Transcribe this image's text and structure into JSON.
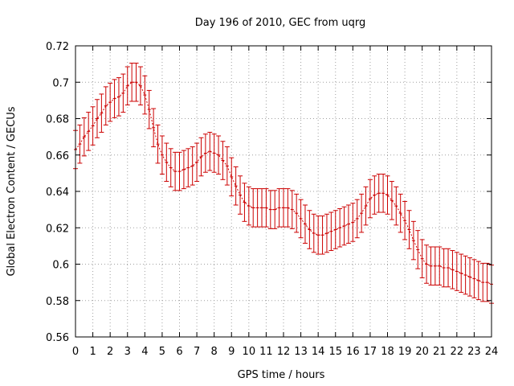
{
  "chart_data": {
    "type": "line",
    "title": "Day 196 of 2010, GEC from uqrg",
    "xlabel": "GPS time / hours",
    "ylabel": "Global Electron Content / GECUs",
    "xlim": [
      0,
      24
    ],
    "ylim": [
      0.56,
      0.72
    ],
    "xticks": [
      "0",
      "1",
      "2",
      "3",
      "4",
      "5",
      "6",
      "7",
      "8",
      "9",
      "10",
      "11",
      "12",
      "13",
      "14",
      "15",
      "16",
      "17",
      "18",
      "19",
      "20",
      "21",
      "22",
      "23",
      "24"
    ],
    "yticks": [
      "0.56",
      "0.58",
      "0.6",
      "0.62",
      "0.64",
      "0.66",
      "0.68",
      "0.7",
      "0.72"
    ],
    "grid": true,
    "error_bars": true,
    "color": "#cc0000",
    "series": [
      {
        "x": [
          0.0,
          0.25,
          0.5,
          0.75,
          1.0,
          1.25,
          1.5,
          1.75,
          2.0,
          2.25,
          2.5,
          2.75,
          3.0,
          3.25,
          3.5,
          3.75,
          4.0,
          4.25,
          4.5,
          4.75,
          5.0,
          5.25,
          5.5,
          5.75,
          6.0,
          6.25,
          6.5,
          6.75,
          7.0,
          7.25,
          7.5,
          7.75,
          8.0,
          8.25,
          8.5,
          8.75,
          9.0,
          9.25,
          9.5,
          9.75,
          10.0,
          10.25,
          10.5,
          10.75,
          11.0,
          11.25,
          11.5,
          11.75,
          12.0,
          12.25,
          12.5,
          12.75,
          13.0,
          13.25,
          13.5,
          13.75,
          14.0,
          14.25,
          14.5,
          14.75,
          15.0,
          15.25,
          15.5,
          15.75,
          16.0,
          16.25,
          16.5,
          16.75,
          17.0,
          17.25,
          17.5,
          17.75,
          18.0,
          18.25,
          18.5,
          18.75,
          19.0,
          19.25,
          19.5,
          19.75,
          20.0,
          20.25,
          20.5,
          20.75,
          21.0,
          21.25,
          21.5,
          21.75,
          22.0,
          22.25,
          22.5,
          22.75,
          23.0,
          23.25,
          23.5,
          23.75,
          24.0
        ],
        "y": [
          0.663,
          0.666,
          0.67,
          0.673,
          0.676,
          0.68,
          0.683,
          0.687,
          0.689,
          0.691,
          0.692,
          0.694,
          0.698,
          0.7,
          0.7,
          0.698,
          0.693,
          0.685,
          0.675,
          0.666,
          0.66,
          0.656,
          0.653,
          0.651,
          0.651,
          0.652,
          0.653,
          0.654,
          0.656,
          0.659,
          0.661,
          0.662,
          0.661,
          0.66,
          0.657,
          0.654,
          0.648,
          0.643,
          0.638,
          0.634,
          0.632,
          0.631,
          0.631,
          0.631,
          0.631,
          0.63,
          0.63,
          0.631,
          0.631,
          0.631,
          0.63,
          0.628,
          0.625,
          0.622,
          0.619,
          0.617,
          0.616,
          0.616,
          0.617,
          0.618,
          0.619,
          0.62,
          0.621,
          0.622,
          0.623,
          0.625,
          0.628,
          0.632,
          0.636,
          0.638,
          0.639,
          0.639,
          0.638,
          0.635,
          0.632,
          0.628,
          0.624,
          0.619,
          0.613,
          0.608,
          0.603,
          0.6,
          0.599,
          0.599,
          0.599,
          0.598,
          0.598,
          0.597,
          0.596,
          0.595,
          0.594,
          0.593,
          0.592,
          0.591,
          0.59,
          0.59,
          0.589
        ],
        "err": 0.0105
      }
    ]
  }
}
